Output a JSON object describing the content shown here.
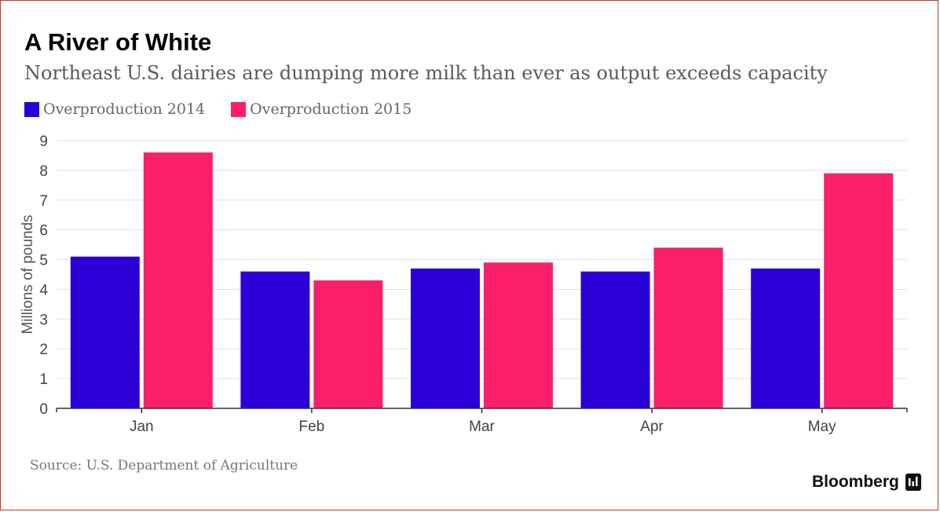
{
  "header": {
    "title": "A River of White",
    "subtitle": "Northeast U.S. dairies are dumping more milk than ever as output exceeds capacity"
  },
  "legend": [
    {
      "label": "Overproduction 2014",
      "color": "#2b00d7"
    },
    {
      "label": "Overproduction 2015",
      "color": "#fb1e6a"
    }
  ],
  "chart_data": {
    "type": "bar",
    "title": "A River of White",
    "subtitle": "Northeast U.S. dairies are dumping more milk than ever as output exceeds capacity",
    "xlabel": "",
    "ylabel": "Millions of pounds",
    "ylim": [
      0,
      9
    ],
    "yticks": [
      0,
      1,
      2,
      3,
      4,
      5,
      6,
      7,
      8,
      9
    ],
    "categories": [
      "Jan",
      "Feb",
      "Mar",
      "Apr",
      "May"
    ],
    "series": [
      {
        "name": "Overproduction 2014",
        "color": "#2b00d7",
        "values": [
          5.1,
          4.6,
          4.7,
          4.6,
          4.7
        ]
      },
      {
        "name": "Overproduction 2015",
        "color": "#fb1e6a",
        "values": [
          8.6,
          4.3,
          4.9,
          5.4,
          7.9
        ]
      }
    ],
    "grid": true,
    "legend_position": "top-left"
  },
  "footer": {
    "source": "Source: U.S. Department of Agriculture",
    "brand": "Bloomberg"
  }
}
